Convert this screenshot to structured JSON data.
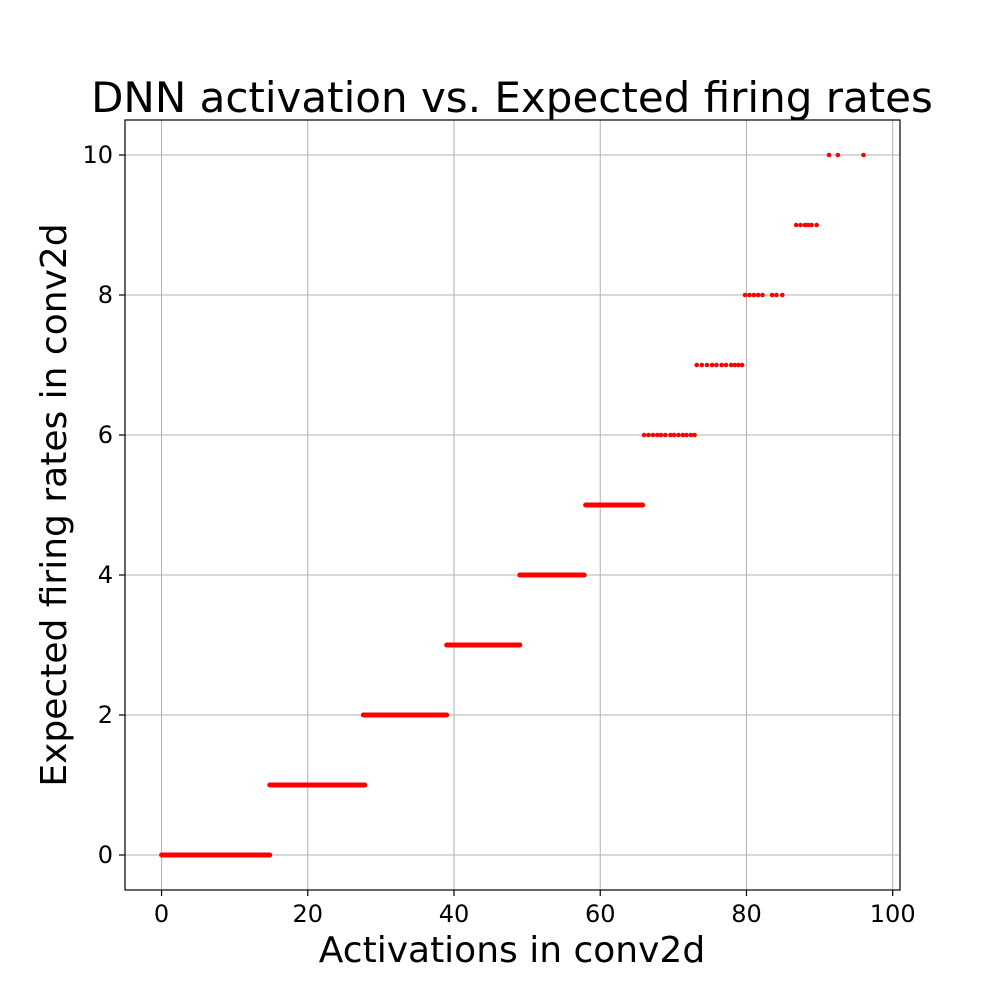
{
  "chart_data": {
    "type": "scatter",
    "title": "DNN activation vs. Expected firing rates",
    "xlabel": "Activations in conv2d",
    "ylabel": "Expected firing rates in conv2d",
    "xlim": [
      -5,
      101
    ],
    "ylim": [
      -0.5,
      10.5
    ],
    "xticks": [
      0,
      20,
      40,
      60,
      80,
      100
    ],
    "yticks": [
      0,
      2,
      4,
      6,
      8,
      10
    ],
    "xtick_labels": [
      "0",
      "20",
      "40",
      "60",
      "80",
      "100"
    ],
    "ytick_labels": [
      "0",
      "2",
      "4",
      "6",
      "8",
      "10"
    ],
    "grid": true,
    "marker_color": "#ff0000",
    "series": [
      {
        "segments": [
          {
            "y": 0,
            "x_start": 0,
            "x_end": 14.8
          },
          {
            "y": 1,
            "x_start": 14.8,
            "x_end": 27.8
          },
          {
            "y": 2,
            "x_start": 27.6,
            "x_end": 39.0
          },
          {
            "y": 3,
            "x_start": 39.0,
            "x_end": 49.0
          },
          {
            "y": 4,
            "x_start": 49.0,
            "x_end": 57.8
          },
          {
            "y": 5,
            "x_start": 58.0,
            "x_end": 65.8
          }
        ],
        "points": [
          {
            "x": 66.0,
            "y": 6
          },
          {
            "x": 66.6,
            "y": 6
          },
          {
            "x": 67.2,
            "y": 6
          },
          {
            "x": 67.8,
            "y": 6
          },
          {
            "x": 68.3,
            "y": 6
          },
          {
            "x": 68.9,
            "y": 6
          },
          {
            "x": 69.6,
            "y": 6
          },
          {
            "x": 70.1,
            "y": 6
          },
          {
            "x": 70.7,
            "y": 6
          },
          {
            "x": 71.3,
            "y": 6
          },
          {
            "x": 71.8,
            "y": 6
          },
          {
            "x": 72.4,
            "y": 6
          },
          {
            "x": 72.9,
            "y": 6
          },
          {
            "x": 73.2,
            "y": 7
          },
          {
            "x": 73.9,
            "y": 7
          },
          {
            "x": 74.6,
            "y": 7
          },
          {
            "x": 75.3,
            "y": 7
          },
          {
            "x": 75.9,
            "y": 7
          },
          {
            "x": 76.6,
            "y": 7
          },
          {
            "x": 77.2,
            "y": 7
          },
          {
            "x": 77.9,
            "y": 7
          },
          {
            "x": 78.4,
            "y": 7
          },
          {
            "x": 78.9,
            "y": 7
          },
          {
            "x": 79.4,
            "y": 7
          },
          {
            "x": 79.8,
            "y": 8
          },
          {
            "x": 80.4,
            "y": 8
          },
          {
            "x": 81.0,
            "y": 8
          },
          {
            "x": 81.6,
            "y": 8
          },
          {
            "x": 82.2,
            "y": 8
          },
          {
            "x": 83.5,
            "y": 8
          },
          {
            "x": 84.1,
            "y": 8
          },
          {
            "x": 84.9,
            "y": 8
          },
          {
            "x": 86.8,
            "y": 9
          },
          {
            "x": 87.4,
            "y": 9
          },
          {
            "x": 88.0,
            "y": 9
          },
          {
            "x": 88.4,
            "y": 9
          },
          {
            "x": 88.9,
            "y": 9
          },
          {
            "x": 89.6,
            "y": 9
          },
          {
            "x": 91.3,
            "y": 10
          },
          {
            "x": 92.5,
            "y": 10
          },
          {
            "x": 96.0,
            "y": 10
          }
        ]
      }
    ]
  }
}
